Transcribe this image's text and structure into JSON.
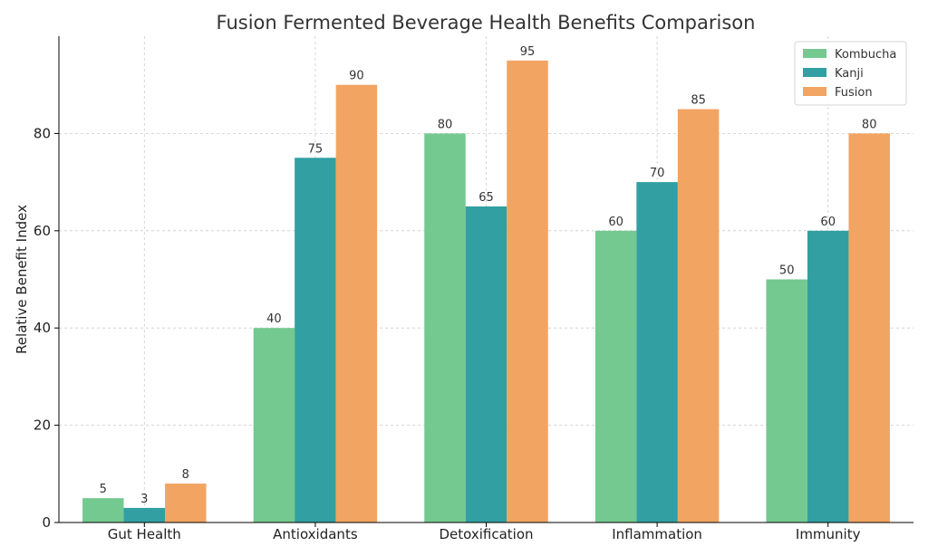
{
  "chart_data": {
    "type": "bar",
    "title": "Fusion Fermented Beverage Health Benefits Comparison",
    "xlabel": "",
    "ylabel": "Relative Benefit Index",
    "categories": [
      "Gut Health",
      "Antioxidants",
      "Detoxification",
      "Inflammation",
      "Immunity"
    ],
    "series": [
      {
        "name": "Kombucha",
        "color": "#74c990",
        "values": [
          5,
          40,
          80,
          60,
          50
        ]
      },
      {
        "name": "Kanji",
        "color": "#329fa3",
        "values": [
          3,
          75,
          65,
          70,
          60
        ]
      },
      {
        "name": "Fusion",
        "color": "#f2a462",
        "values": [
          8,
          90,
          95,
          85,
          80
        ]
      }
    ],
    "ylim": [
      0,
      100
    ],
    "yticks": [
      0,
      20,
      40,
      60,
      80
    ],
    "grid": true,
    "legend_position": "top-right"
  }
}
